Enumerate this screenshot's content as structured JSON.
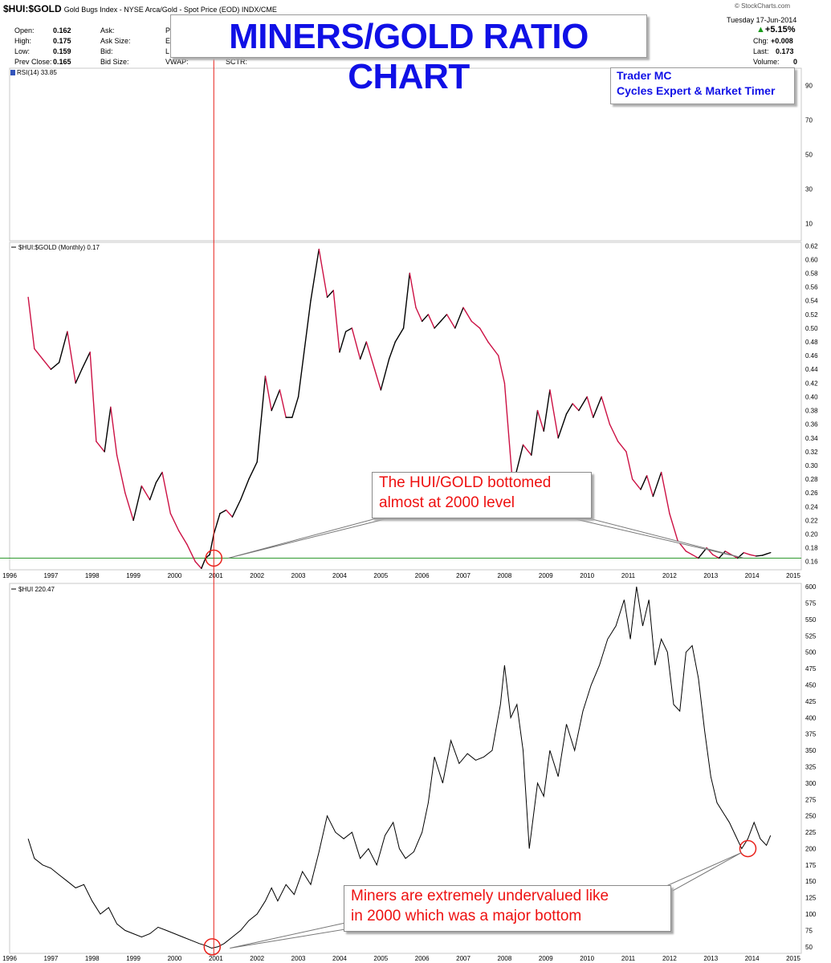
{
  "header": {
    "symbol": "$HUI:$GOLD",
    "description": "Gold Bugs Index - NYSE Arca/Gold - Spot Price (EOD) INDX/CME",
    "watermark": "© StockCharts.com",
    "date": "Tuesday  17-Jun-2014",
    "open_label": "Open:",
    "open": "0.162",
    "high_label": "High:",
    "high": "0.175",
    "low_label": "Low:",
    "low": "0.159",
    "prev_label": "Prev Close:",
    "prev": "0.165",
    "ask_label": "Ask:",
    "ask_size_label": "Ask Size:",
    "bid_label": "Bid:",
    "bid_size_label": "Bid Size:",
    "p_col": "P",
    "e_col": "E",
    "l_col": "L",
    "vwap_label": "VWAP:",
    "sctr_label": "SCTR:",
    "change_pct": "+5.15%",
    "chg_label": "Chg:",
    "chg": "+0.008",
    "last_label": "Last:",
    "last": "0.173",
    "volume_label": "Volume:",
    "volume": "0"
  },
  "title": "MINERS/GOLD RATIO CHART",
  "author": [
    "Trader MC",
    "Cycles Expert & Market Timer"
  ],
  "callouts": {
    "ratio": [
      "The HUI/GOLD  bottomed",
      "almost at 2000 level"
    ],
    "hui": [
      "Miners are extremely undervalued like",
      "in 2000 which was a major bottom"
    ]
  },
  "colors": {
    "down": "#cc1144",
    "up": "#000000",
    "support": "#2e9a2e",
    "marker": "#e8201a",
    "callout_text": "#ee1111",
    "title": "#1010e6"
  },
  "chart_data": [
    {
      "type": "line",
      "title": "RSI(14) 33.85",
      "ylim": [
        0,
        100
      ],
      "yticks": [
        10,
        30,
        50,
        70,
        90
      ],
      "values": []
    },
    {
      "type": "line",
      "title": "$HUI:$GOLD (Monthly) 0.17",
      "x_ticks": [
        "1996",
        "1997",
        "1998",
        "1999",
        "2000",
        "2001",
        "2002",
        "2003",
        "2004",
        "2005",
        "2006",
        "2007",
        "2008",
        "2009",
        "2010",
        "2011",
        "2012",
        "2013",
        "2014",
        "2015"
      ],
      "ylim": [
        0.148,
        0.625
      ],
      "yticks": [
        0.16,
        0.18,
        0.2,
        0.22,
        0.24,
        0.26,
        0.28,
        0.3,
        0.32,
        0.34,
        0.36,
        0.38,
        0.4,
        0.42,
        0.44,
        0.46,
        0.48,
        0.5,
        0.52,
        0.54,
        0.56,
        0.58,
        0.6,
        0.62
      ],
      "support_level": 0.165,
      "x": [
        1996.45,
        1996.6,
        1996.8,
        1997.0,
        1997.2,
        1997.4,
        1997.6,
        1997.75,
        1997.95,
        1998.1,
        1998.3,
        1998.45,
        1998.6,
        1998.8,
        1999.0,
        1999.2,
        1999.4,
        1999.55,
        1999.7,
        1999.9,
        2000.1,
        2000.3,
        2000.5,
        2000.65,
        2000.75,
        2000.85,
        2000.95,
        2001.1,
        2001.25,
        2001.4,
        2001.6,
        2001.8,
        2002.0,
        2002.2,
        2002.35,
        2002.55,
        2002.7,
        2002.85,
        2003.0,
        2003.15,
        2003.3,
        2003.5,
        2003.7,
        2003.85,
        2004.0,
        2004.15,
        2004.3,
        2004.5,
        2004.65,
        2004.85,
        2005.0,
        2005.2,
        2005.35,
        2005.55,
        2005.7,
        2005.85,
        2006.0,
        2006.15,
        2006.3,
        2006.45,
        2006.6,
        2006.8,
        2007.0,
        2007.2,
        2007.4,
        2007.6,
        2007.85,
        2008.0,
        2008.2,
        2008.45,
        2008.65,
        2008.8,
        2008.95,
        2009.1,
        2009.3,
        2009.5,
        2009.65,
        2009.8,
        2010.0,
        2010.15,
        2010.35,
        2010.55,
        2010.75,
        2010.95,
        2011.1,
        2011.3,
        2011.45,
        2011.6,
        2011.8,
        2012.0,
        2012.2,
        2012.4,
        2012.55,
        2012.7,
        2012.9,
        2013.05,
        2013.2,
        2013.35,
        2013.5,
        2013.65,
        2013.8,
        2013.95,
        2014.1,
        2014.25,
        2014.35,
        2014.45
      ],
      "values": [
        0.545,
        0.47,
        0.455,
        0.44,
        0.45,
        0.495,
        0.42,
        0.44,
        0.465,
        0.335,
        0.32,
        0.385,
        0.315,
        0.26,
        0.22,
        0.27,
        0.25,
        0.275,
        0.29,
        0.23,
        0.205,
        0.185,
        0.16,
        0.15,
        0.165,
        0.17,
        0.2,
        0.23,
        0.235,
        0.225,
        0.25,
        0.28,
        0.305,
        0.43,
        0.38,
        0.41,
        0.37,
        0.37,
        0.4,
        0.47,
        0.54,
        0.615,
        0.545,
        0.555,
        0.465,
        0.495,
        0.5,
        0.455,
        0.48,
        0.44,
        0.41,
        0.455,
        0.48,
        0.5,
        0.58,
        0.53,
        0.51,
        0.52,
        0.5,
        0.51,
        0.52,
        0.5,
        0.53,
        0.51,
        0.5,
        0.48,
        0.46,
        0.42,
        0.27,
        0.33,
        0.315,
        0.38,
        0.35,
        0.41,
        0.34,
        0.375,
        0.39,
        0.38,
        0.4,
        0.37,
        0.4,
        0.36,
        0.335,
        0.32,
        0.28,
        0.265,
        0.285,
        0.255,
        0.29,
        0.23,
        0.19,
        0.175,
        0.17,
        0.165,
        0.18,
        0.17,
        0.165,
        0.175,
        0.17,
        0.165,
        0.173,
        0.17,
        0.168,
        0.169,
        0.171,
        0.173
      ]
    },
    {
      "type": "line",
      "title": "$HUI 220.47",
      "x_ticks": [
        "1996",
        "1997",
        "1998",
        "1999",
        "2000",
        "2001",
        "2002",
        "2003",
        "2004",
        "2005",
        "2006",
        "2007",
        "2008",
        "2009",
        "2010",
        "2011",
        "2012",
        "2013",
        "2014",
        "2015"
      ],
      "ylim": [
        40,
        605
      ],
      "yticks": [
        50,
        75,
        100,
        125,
        150,
        175,
        200,
        225,
        250,
        275,
        300,
        325,
        350,
        375,
        400,
        425,
        450,
        475,
        500,
        525,
        550,
        575,
        600
      ],
      "x": [
        1996.45,
        1996.6,
        1996.8,
        1997.0,
        1997.2,
        1997.4,
        1997.6,
        1997.8,
        1998.0,
        1998.2,
        1998.4,
        1998.6,
        1998.8,
        1999.0,
        1999.2,
        1999.4,
        1999.6,
        1999.8,
        2000.0,
        2000.2,
        2000.4,
        2000.6,
        2000.75,
        2000.9,
        2001.05,
        2001.2,
        2001.4,
        2001.6,
        2001.8,
        2002.0,
        2002.2,
        2002.35,
        2002.5,
        2002.7,
        2002.9,
        2003.1,
        2003.3,
        2003.5,
        2003.7,
        2003.9,
        2004.1,
        2004.3,
        2004.5,
        2004.7,
        2004.9,
        2005.1,
        2005.3,
        2005.45,
        2005.6,
        2005.8,
        2006.0,
        2006.15,
        2006.3,
        2006.5,
        2006.7,
        2006.9,
        2007.1,
        2007.3,
        2007.5,
        2007.7,
        2007.9,
        2008.0,
        2008.15,
        2008.3,
        2008.45,
        2008.6,
        2008.8,
        2008.95,
        2009.1,
        2009.3,
        2009.5,
        2009.7,
        2009.9,
        2010.1,
        2010.3,
        2010.5,
        2010.7,
        2010.9,
        2011.05,
        2011.2,
        2011.35,
        2011.5,
        2011.65,
        2011.8,
        2011.95,
        2012.1,
        2012.25,
        2012.4,
        2012.55,
        2012.7,
        2012.85,
        2013.0,
        2013.15,
        2013.3,
        2013.45,
        2013.6,
        2013.75,
        2013.9,
        2014.05,
        2014.2,
        2014.35,
        2014.45
      ],
      "values": [
        215,
        185,
        175,
        170,
        160,
        150,
        140,
        145,
        120,
        100,
        110,
        85,
        75,
        70,
        65,
        70,
        80,
        75,
        70,
        65,
        60,
        55,
        52,
        48,
        50,
        55,
        65,
        75,
        90,
        100,
        120,
        140,
        120,
        145,
        130,
        165,
        145,
        195,
        250,
        225,
        215,
        225,
        185,
        200,
        175,
        220,
        240,
        200,
        185,
        195,
        225,
        270,
        340,
        300,
        365,
        330,
        345,
        335,
        340,
        350,
        420,
        480,
        400,
        420,
        350,
        200,
        300,
        280,
        350,
        310,
        390,
        350,
        410,
        450,
        480,
        520,
        540,
        580,
        520,
        600,
        540,
        580,
        480,
        520,
        500,
        420,
        410,
        500,
        510,
        460,
        380,
        310,
        270,
        255,
        240,
        220,
        200,
        215,
        240,
        215,
        205,
        220
      ]
    }
  ]
}
